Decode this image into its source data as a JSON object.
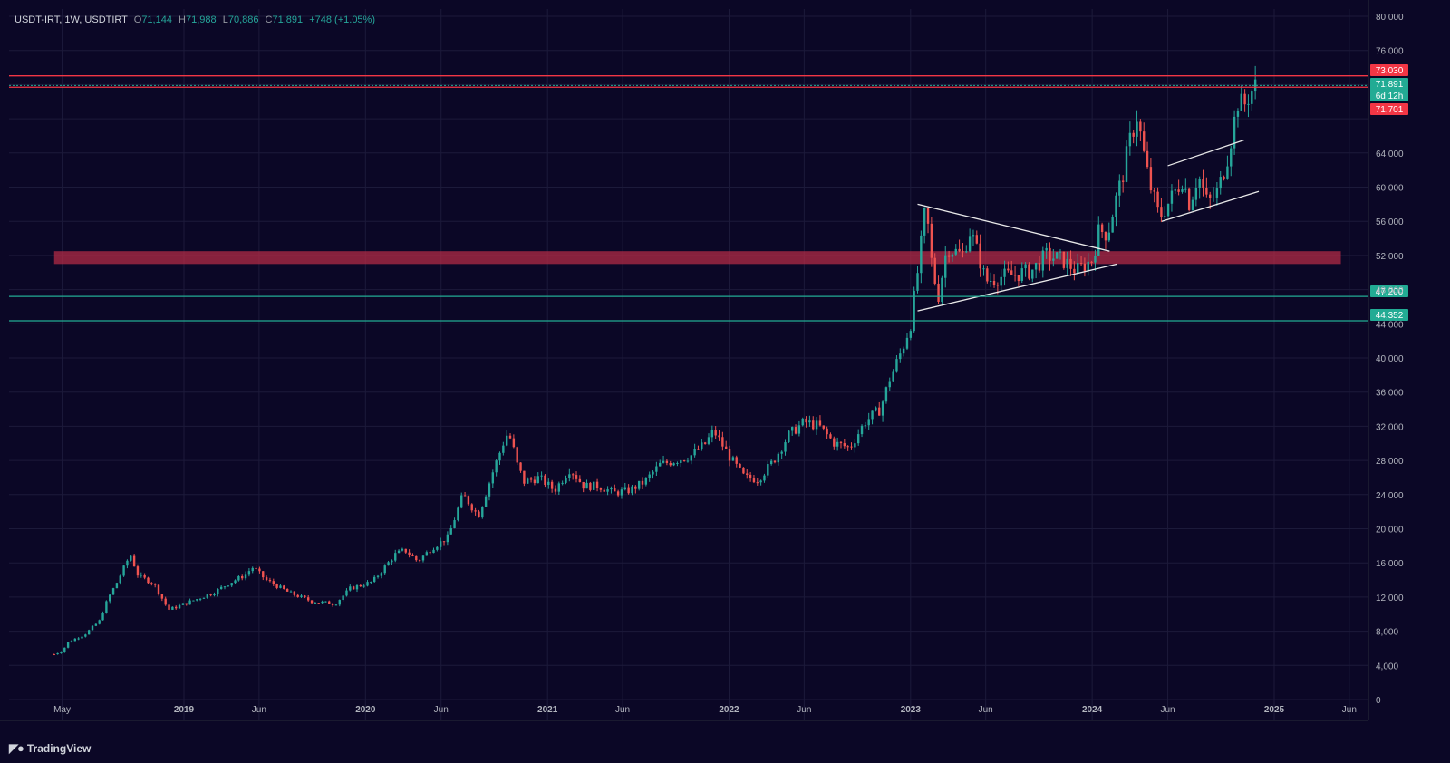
{
  "legend": {
    "symbol": "USDT-IRT, 1W, USDTIRT",
    "open_label": "O",
    "open": "71,144",
    "high_label": "H",
    "high": "71,988",
    "low_label": "L",
    "low": "70,886",
    "close_label": "C",
    "close": "71,891",
    "change": "+748 (+1.05%)"
  },
  "brand": {
    "icon": "tradingview-logo-icon",
    "name": "TradingView"
  },
  "colors": {
    "background": "#0b0726",
    "grid": "#1c1a3a",
    "up": "#26a69a",
    "down": "#ef5350",
    "resistance": "#f23645",
    "support": "#22ab94",
    "zone": "#b22b45",
    "pattern": "#e8e8e8"
  },
  "chart_data": {
    "type": "candlestick",
    "interval": "1W",
    "x_tick_labels": [
      "May",
      "2019",
      "Jun",
      "2020",
      "Jun",
      "2021",
      "Jun",
      "2022",
      "Jun",
      "2023",
      "Jun",
      "2024",
      "Jun",
      "2025",
      "Jun"
    ],
    "x_tick_dates": [
      "2018-05-01",
      "2019-01-01",
      "2019-06-01",
      "2020-01-01",
      "2020-06-01",
      "2021-01-01",
      "2021-06-01",
      "2022-01-01",
      "2022-06-01",
      "2023-01-01",
      "2023-06-01",
      "2024-01-01",
      "2024-06-01",
      "2025-01-01",
      "2025-06-01"
    ],
    "y_tick_labels": [
      "0",
      "4,000",
      "8,000",
      "12,000",
      "16,000",
      "20,000",
      "24,000",
      "28,000",
      "32,000",
      "36,000",
      "40,000",
      "44,000",
      "48,000",
      "52,000",
      "56,000",
      "60,000",
      "64,000",
      "68,000",
      "72,000",
      "76,000",
      "80,000"
    ],
    "ylim": [
      0,
      80000
    ],
    "grid": true,
    "price_path": [
      [
        "2018-04-15",
        5300
      ],
      [
        "2018-05-01",
        5700
      ],
      [
        "2018-05-15",
        6800
      ],
      [
        "2018-06-15",
        7600
      ],
      [
        "2018-07-15",
        9200
      ],
      [
        "2018-08-01",
        11800
      ],
      [
        "2018-08-20",
        13800
      ],
      [
        "2018-09-15",
        17000
      ],
      [
        "2018-10-01",
        14500
      ],
      [
        "2018-11-01",
        13600
      ],
      [
        "2018-12-01",
        10500
      ],
      [
        "2019-01-15",
        11500
      ],
      [
        "2019-03-01",
        12500
      ],
      [
        "2019-04-01",
        13600
      ],
      [
        "2019-05-01",
        14500
      ],
      [
        "2019-05-20",
        15500
      ],
      [
        "2019-06-15",
        14000
      ],
      [
        "2019-08-01",
        12500
      ],
      [
        "2019-09-15",
        11500
      ],
      [
        "2019-11-01",
        11200
      ],
      [
        "2019-12-01",
        13000
      ],
      [
        "2020-01-15",
        13800
      ],
      [
        "2020-03-01",
        17000
      ],
      [
        "2020-03-20",
        17500
      ],
      [
        "2020-04-15",
        16200
      ],
      [
        "2020-05-15",
        17800
      ],
      [
        "2020-06-15",
        19000
      ],
      [
        "2020-07-15",
        24000
      ],
      [
        "2020-08-15",
        21500
      ],
      [
        "2020-09-15",
        27000
      ],
      [
        "2020-10-10",
        31000
      ],
      [
        "2020-10-20",
        30500
      ],
      [
        "2020-11-01",
        27500
      ],
      [
        "2020-11-15",
        25500
      ],
      [
        "2020-12-15",
        26000
      ],
      [
        "2021-01-15",
        24500
      ],
      [
        "2021-02-15",
        27000
      ],
      [
        "2021-03-15",
        25000
      ],
      [
        "2021-04-15",
        25000
      ],
      [
        "2021-05-15",
        24200
      ],
      [
        "2021-06-15",
        24500
      ],
      [
        "2021-07-15",
        25500
      ],
      [
        "2021-08-15",
        27500
      ],
      [
        "2021-09-15",
        28000
      ],
      [
        "2021-10-15",
        28500
      ],
      [
        "2021-11-15",
        30000
      ],
      [
        "2021-12-01",
        31500
      ],
      [
        "2022-01-01",
        28500
      ],
      [
        "2022-02-01",
        26000
      ],
      [
        "2022-03-01",
        25800
      ],
      [
        "2022-04-01",
        28000
      ],
      [
        "2022-05-01",
        31000
      ],
      [
        "2022-06-01",
        32500
      ],
      [
        "2022-07-01",
        32000
      ],
      [
        "2022-08-01",
        30000
      ],
      [
        "2022-09-01",
        29500
      ],
      [
        "2022-10-01",
        32500
      ],
      [
        "2022-11-01",
        34000
      ],
      [
        "2022-11-20",
        37500
      ],
      [
        "2022-12-15",
        41000
      ],
      [
        "2023-01-01",
        44000
      ],
      [
        "2023-01-15",
        50000
      ],
      [
        "2023-02-01",
        58000
      ],
      [
        "2023-02-10",
        52000
      ],
      [
        "2023-02-25",
        47000
      ],
      [
        "2023-03-15",
        53000
      ],
      [
        "2023-04-15",
        52000
      ],
      [
        "2023-05-01",
        55000
      ],
      [
        "2023-05-20",
        51500
      ],
      [
        "2023-06-01",
        49000
      ],
      [
        "2023-07-01",
        49500
      ],
      [
        "2023-08-01",
        49800
      ],
      [
        "2023-09-01",
        50200
      ],
      [
        "2023-10-01",
        52000
      ],
      [
        "2023-11-01",
        51500
      ],
      [
        "2023-12-01",
        50200
      ],
      [
        "2024-01-01",
        51500
      ],
      [
        "2024-01-15",
        55000
      ],
      [
        "2024-02-01",
        54500
      ],
      [
        "2024-02-15",
        58000
      ],
      [
        "2024-03-01",
        61000
      ],
      [
        "2024-03-15",
        65000
      ],
      [
        "2024-04-01",
        68500
      ],
      [
        "2024-04-10",
        65000
      ],
      [
        "2024-04-25",
        60500
      ],
      [
        "2024-05-15",
        56500
      ],
      [
        "2024-06-01",
        58000
      ],
      [
        "2024-07-01",
        61000
      ],
      [
        "2024-07-15",
        58000
      ],
      [
        "2024-08-01",
        61500
      ],
      [
        "2024-08-20",
        58000
      ],
      [
        "2024-09-10",
        59500
      ],
      [
        "2024-10-01",
        64000
      ],
      [
        "2024-10-20",
        70000
      ],
      [
        "2024-11-01",
        69500
      ],
      [
        "2024-11-15",
        71200
      ],
      [
        "2024-11-25",
        71891
      ]
    ],
    "horizontal_levels": [
      {
        "label": "73,030",
        "value": 73030,
        "color": "#f23645"
      },
      {
        "label": "71,891",
        "value": 71891,
        "color": "#22ab94",
        "sublabel": "6d 12h"
      },
      {
        "label": "71,701",
        "value": 71701,
        "color": "#f23645"
      },
      {
        "label": "47,200",
        "value": 47200,
        "color": "#22ab94"
      },
      {
        "label": "44,352",
        "value": 44352,
        "color": "#22ab94"
      }
    ],
    "zone": {
      "from": 51000,
      "to": 52500,
      "x_from": "2018-04-15",
      "x_to": "2025-05-15"
    },
    "trendlines": [
      {
        "from": [
          "2023-01-15",
          58000
        ],
        "to": [
          "2024-02-05",
          52500
        ]
      },
      {
        "from": [
          "2023-01-15",
          45500
        ],
        "to": [
          "2024-02-20",
          51000
        ]
      },
      {
        "from": [
          "2024-06-01",
          62500
        ],
        "to": [
          "2024-11-01",
          65500
        ]
      },
      {
        "from": [
          "2024-05-20",
          56000
        ],
        "to": [
          "2024-12-01",
          59500
        ]
      }
    ]
  }
}
